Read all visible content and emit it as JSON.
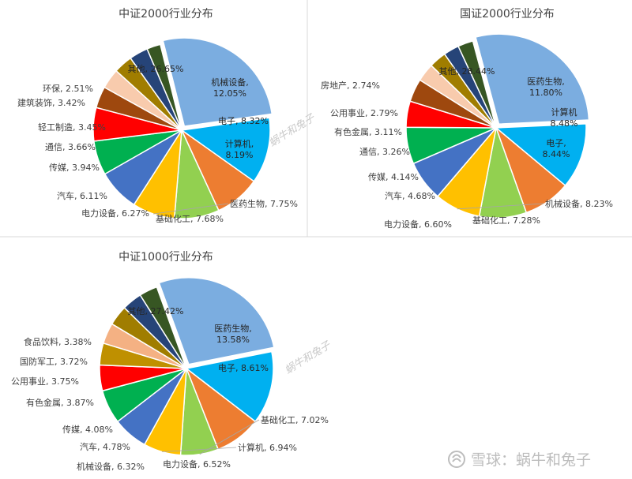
{
  "chart_data": [
    {
      "type": "pie",
      "title": "中证2000行业分布",
      "slices": [
        {
          "name": "其他",
          "value": 26.65,
          "label": "其他, 26.65%",
          "color": "#7BADE0"
        },
        {
          "name": "机械设备",
          "value": 12.05,
          "label": "机械设备,\n12.05%",
          "color": "#00B0F0"
        },
        {
          "name": "电子",
          "value": 8.32,
          "label": "电子, 8.32%",
          "color": "#ED7D31"
        },
        {
          "name": "计算机",
          "value": 8.19,
          "label": "计算机,\n8.19%",
          "color": "#92D050"
        },
        {
          "name": "医药生物",
          "value": 7.75,
          "label": "医药生物, 7.75%",
          "color": "#FFC000"
        },
        {
          "name": "基础化工",
          "value": 7.68,
          "label": "基础化工, 7.68%",
          "color": "#4472C4"
        },
        {
          "name": "电力设备",
          "value": 6.27,
          "label": "电力设备, 6.27%",
          "color": "#00B050"
        },
        {
          "name": "汽车",
          "value": 6.11,
          "label": "汽车, 6.11%",
          "color": "#FF0000"
        },
        {
          "name": "传媒",
          "value": 3.94,
          "label": "传媒, 3.94%",
          "color": "#9E480E"
        },
        {
          "name": "通信",
          "value": 3.66,
          "label": "通信, 3.66%",
          "color": "#F8CBAD"
        },
        {
          "name": "轻工制造",
          "value": 3.45,
          "label": "轻工制造, 3.45%",
          "color": "#A07D00"
        },
        {
          "name": "建筑装饰",
          "value": 3.42,
          "label": "建筑装饰, 3.42%",
          "color": "#264478"
        },
        {
          "name": "环保",
          "value": 2.51,
          "label": "环保, 2.51%",
          "color": "#375623"
        }
      ]
    },
    {
      "type": "pie",
      "title": "国证2000行业分布",
      "slices": [
        {
          "name": "其他",
          "value": 28.44,
          "label": "其他, 28.44%",
          "color": "#7BADE0"
        },
        {
          "name": "医药生物",
          "value": 11.8,
          "label": "医药生物,\n11.80%",
          "color": "#00B0F0"
        },
        {
          "name": "计算机",
          "value": 8.48,
          "label": "计算机\n8.48%",
          "color": "#ED7D31"
        },
        {
          "name": "电子",
          "value": 8.44,
          "label": "电子,\n8.44%",
          "color": "#92D050"
        },
        {
          "name": "机械设备",
          "value": 8.23,
          "label": "机械设备, 8.23%",
          "color": "#FFC000"
        },
        {
          "name": "基础化工",
          "value": 7.28,
          "label": "基础化工, 7.28%",
          "color": "#4472C4"
        },
        {
          "name": "电力设备",
          "value": 6.6,
          "label": "电力设备, 6.60%",
          "color": "#00B050"
        },
        {
          "name": "汽车",
          "value": 4.68,
          "label": "汽车, 4.68%",
          "color": "#FF0000"
        },
        {
          "name": "传媒",
          "value": 4.14,
          "label": "传媒, 4.14%",
          "color": "#9E480E"
        },
        {
          "name": "通信",
          "value": 3.26,
          "label": "通信, 3.26%",
          "color": "#F8CBAD"
        },
        {
          "name": "有色金属",
          "value": 3.11,
          "label": "有色金属, 3.11%",
          "color": "#A07D00"
        },
        {
          "name": "公用事业",
          "value": 2.79,
          "label": "公用事业, 2.79%",
          "color": "#264478"
        },
        {
          "name": "房地产",
          "value": 2.74,
          "label": "房地产, 2.74%",
          "color": "#375623"
        }
      ]
    },
    {
      "type": "pie",
      "title": "中证1000行业分布",
      "slices": [
        {
          "name": "其他",
          "value": 27.42,
          "label": "其他, 27.42%",
          "color": "#7BADE0"
        },
        {
          "name": "医药生物",
          "value": 13.58,
          "label": "医药生物,\n13.58%",
          "color": "#00B0F0"
        },
        {
          "name": "电子",
          "value": 8.61,
          "label": "电子, 8.61%",
          "color": "#ED7D31"
        },
        {
          "name": "基础化工",
          "value": 7.02,
          "label": "基础化工, 7.02%",
          "color": "#92D050"
        },
        {
          "name": "计算机",
          "value": 6.94,
          "label": "计算机, 6.94%",
          "color": "#FFC000"
        },
        {
          "name": "电力设备",
          "value": 6.52,
          "label": "电力设备, 6.52%",
          "color": "#4472C4"
        },
        {
          "name": "机械设备",
          "value": 6.32,
          "label": "机械设备, 6.32%",
          "color": "#00B050"
        },
        {
          "name": "汽车",
          "value": 4.78,
          "label": "汽车, 4.78%",
          "color": "#FF0000"
        },
        {
          "name": "传媒",
          "value": 4.08,
          "label": "传媒, 4.08%",
          "color": "#BF9000"
        },
        {
          "name": "有色金属",
          "value": 3.87,
          "label": "有色金属, 3.87%",
          "color": "#F4B183"
        },
        {
          "name": "公用事业",
          "value": 3.75,
          "label": "公用事业, 3.75%",
          "color": "#A07D00"
        },
        {
          "name": "国防军工",
          "value": 3.72,
          "label": "国防军工, 3.72%",
          "color": "#264478"
        },
        {
          "name": "食品饮料",
          "value": 3.38,
          "label": "食品饮料, 3.38%",
          "color": "#375623"
        }
      ]
    }
  ],
  "watermarks": {
    "diagonal": "蜗牛和兔子",
    "footer": "雪球：蜗牛和兔子"
  }
}
